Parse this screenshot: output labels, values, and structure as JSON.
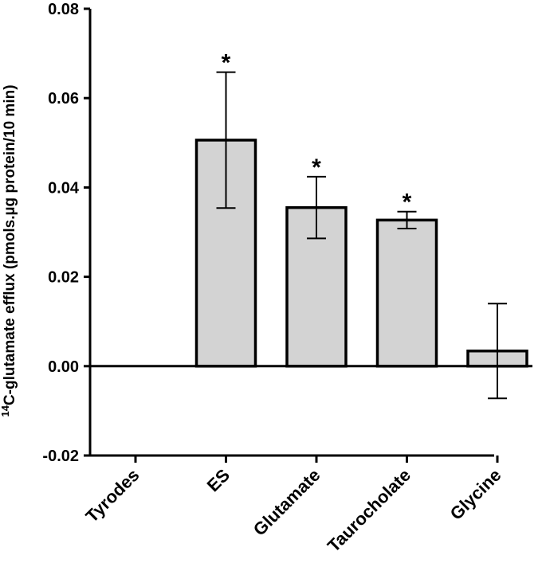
{
  "chart_data": {
    "type": "bar",
    "categories": [
      "Tyrodes",
      "ES",
      "Glutamate",
      "Taurocholate",
      "Glycine"
    ],
    "values": [
      0.0,
      0.0506,
      0.0355,
      0.0327,
      0.0034
    ],
    "errors": [
      0,
      0.0152,
      0.0069,
      0.0019,
      0.0106
    ],
    "significance": [
      "",
      "*",
      "*",
      "*",
      ""
    ],
    "ylabel_sup": "14",
    "ylabel": "C-glutamate efflux (pmols.µg protein/10 min)",
    "xlabel": "",
    "title": "",
    "ylim": [
      -0.02,
      0.08
    ],
    "yticks": [
      -0.02,
      0.0,
      0.02,
      0.04,
      0.06,
      0.08
    ],
    "ytick_labels": [
      "-0.02",
      "0.00",
      "0.02",
      "0.04",
      "0.06",
      "0.08"
    ],
    "bar_color": "#d3d3d3",
    "edge_color": "#000000"
  }
}
